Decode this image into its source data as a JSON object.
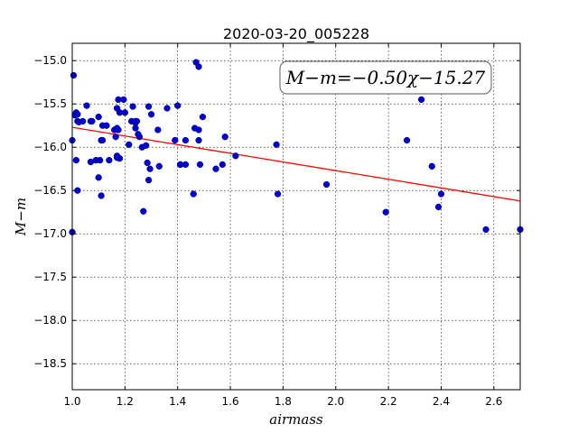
{
  "chart_data": {
    "type": "scatter",
    "title": "2020-03-20_005228",
    "xlabel": "airmass",
    "ylabel": "M−m",
    "xlim": [
      1.0,
      2.7
    ],
    "ylim": [
      -18.8,
      -14.8
    ],
    "y_inverted": true,
    "grid": true,
    "xticks": [
      1.0,
      1.2,
      1.4,
      1.6,
      1.8,
      2.0,
      2.2,
      2.4,
      2.6
    ],
    "yticks": [
      -15.0,
      -15.5,
      -16.0,
      -16.5,
      -17.0,
      -17.5,
      -18.0,
      -18.5
    ],
    "xtick_labels": [
      "1.0",
      "1.2",
      "1.4",
      "1.6",
      "1.8",
      "2.0",
      "2.2",
      "2.4",
      "2.6"
    ],
    "ytick_labels": [
      "−15.0",
      "−15.5",
      "−16.0",
      "−16.5",
      "−17.0",
      "−17.5",
      "−18.0",
      "−18.5"
    ],
    "annotation": "M−m=−0.50χ−15.27",
    "fit": {
      "slope": -0.5,
      "intercept": -15.27,
      "color": "#ff0000"
    },
    "marker_color": "#0000cc",
    "series": [
      {
        "x": [
          1.0,
          1.005,
          1.01,
          1.015,
          1.02,
          1.025,
          1.04,
          1.055,
          1.07,
          1.075,
          1.09,
          1.1,
          1.11,
          1.115,
          1.115,
          1.13,
          1.14,
          1.16,
          1.165,
          1.17,
          1.17,
          1.175,
          1.175,
          1.18,
          1.18,
          1.195,
          1.2,
          1.215,
          1.225,
          1.23,
          1.24,
          1.245,
          1.25,
          1.255,
          1.265,
          1.285,
          1.29,
          1.295,
          1.3,
          1.325,
          1.33,
          1.36,
          1.39,
          1.4,
          1.41,
          1.43,
          1.465,
          1.47,
          1.48,
          1.48,
          1.48,
          1.485,
          1.495,
          1.545,
          1.57,
          1.58,
          1.62,
          1.775,
          1.78,
          1.965,
          2.19,
          2.27,
          2.325,
          2.365,
          2.39,
          2.4,
          2.57,
          2.7,
          1.0,
          1.015,
          1.02,
          1.1,
          1.105,
          1.17,
          1.17,
          1.24,
          1.24,
          1.27,
          1.28,
          1.29,
          1.41,
          1.43,
          1.46,
          1.02,
          1.07,
          1.11
        ],
        "y": [
          -16.98,
          -15.17,
          -15.63,
          -15.6,
          -15.7,
          -15.71,
          -15.7,
          -15.52,
          -15.7,
          -15.7,
          -16.15,
          -15.65,
          -15.92,
          -15.75,
          -15.92,
          -15.75,
          -16.15,
          -15.8,
          -15.88,
          -15.55,
          -16.1,
          -15.45,
          -15.8,
          -16.13,
          -15.6,
          -15.45,
          -15.6,
          -15.97,
          -15.7,
          -15.53,
          -15.72,
          -15.7,
          -15.85,
          -15.88,
          -16.0,
          -16.18,
          -15.53,
          -16.25,
          -15.62,
          -15.8,
          -16.22,
          -15.55,
          -15.92,
          -15.52,
          -16.2,
          -15.92,
          -15.78,
          -15.02,
          -15.07,
          -15.8,
          -15.92,
          -16.2,
          -15.65,
          -16.25,
          -16.2,
          -15.88,
          -16.1,
          -15.97,
          -16.54,
          -16.43,
          -16.75,
          -15.92,
          -15.45,
          -16.22,
          -16.69,
          -16.54,
          -16.95,
          -16.95,
          -15.92,
          -16.15,
          -16.5,
          -16.35,
          -16.15,
          -15.78,
          -16.12,
          -15.78,
          -15.7,
          -16.74,
          -15.98,
          -16.38,
          -16.2,
          -16.2,
          -16.54,
          -15.62,
          -16.17,
          -16.56
        ]
      }
    ]
  }
}
